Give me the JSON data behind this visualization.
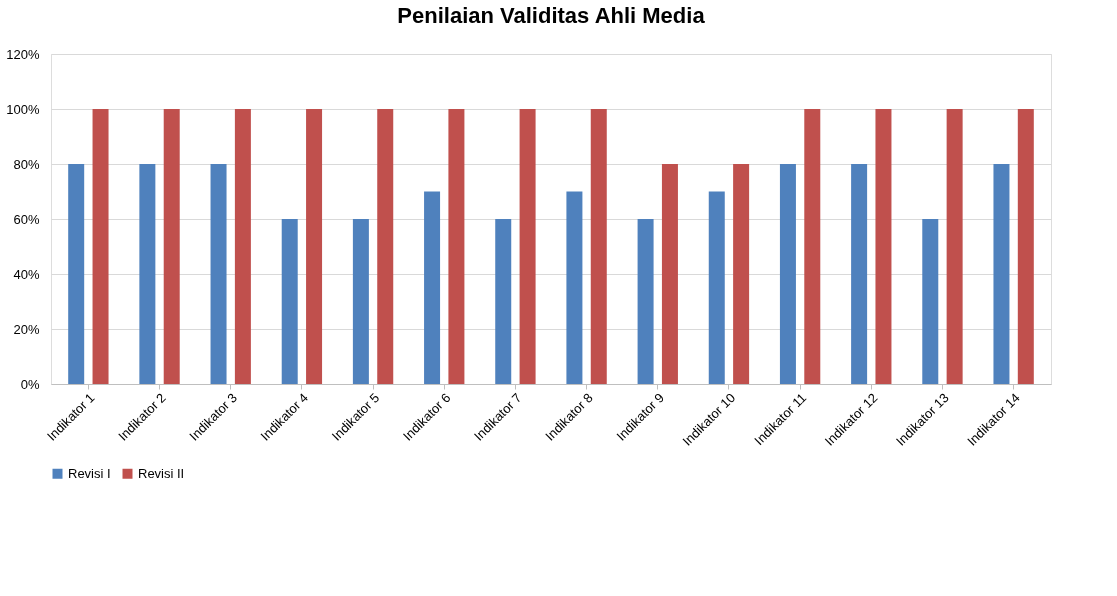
{
  "chart_data": {
    "type": "bar",
    "title": "Penilaian Validitas Ahli Media",
    "categories": [
      "Indikator 1",
      "Indikator 2",
      "Indikator 3",
      "Indikator 4",
      "Indikator 5",
      "Indikator 6",
      "Indikator 7",
      "Indikator 8",
      "Indikator 9",
      "Indikator 10",
      "Indikator 11",
      "Indikator 12",
      "Indikator 13",
      "Indikator 14"
    ],
    "series": [
      {
        "name": "Revisi I",
        "color": "#4f81bd",
        "values": [
          80,
          80,
          80,
          60,
          60,
          70,
          60,
          70,
          60,
          70,
          80,
          80,
          60,
          80
        ]
      },
      {
        "name": "Revisi II",
        "color": "#c0504d",
        "values": [
          100,
          100,
          100,
          100,
          100,
          100,
          100,
          100,
          80,
          80,
          100,
          100,
          100,
          100
        ]
      }
    ],
    "ylim": [
      0,
      120
    ],
    "yticks": [
      {
        "value": 0,
        "label": "0%"
      },
      {
        "value": 20,
        "label": "20%"
      },
      {
        "value": 40,
        "label": "40%"
      },
      {
        "value": 60,
        "label": "60%"
      },
      {
        "value": 80,
        "label": "80%"
      },
      {
        "value": 100,
        "label": "100%"
      },
      {
        "value": 120,
        "label": "120%"
      }
    ],
    "grid": "y",
    "legend": "bottom"
  }
}
